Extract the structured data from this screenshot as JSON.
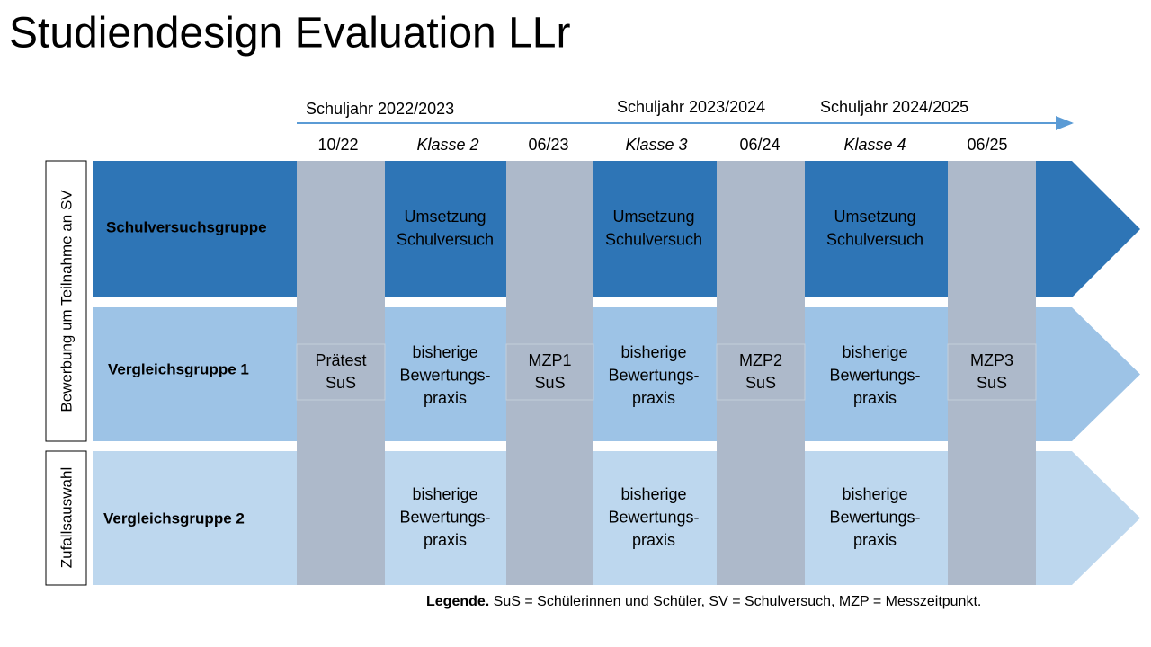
{
  "title": "Studiendesign Evaluation LLr",
  "timeline": {
    "school_years": [
      "Schuljahr  2022/2023",
      "Schuljahr  2023/2024",
      "Schuljahr  2024/2025"
    ],
    "columns": [
      "10/22",
      "Klasse 2",
      "06/23",
      "Klasse 3",
      "06/24",
      "Klasse 4",
      "06/25"
    ]
  },
  "side_labels": [
    "Bewerbung um Teilnahme an SV",
    "Zufallsauswahl"
  ],
  "rows": [
    {
      "label": "Schulversuchsgruppe",
      "cells": [
        [
          "Umsetzung",
          "Schulversuch"
        ],
        [
          "Umsetzung",
          "Schulversuch"
        ],
        [
          "Umsetzung",
          "Schulversuch"
        ]
      ]
    },
    {
      "label": "Vergleichsgruppe 1",
      "cells": [
        [
          "bisherige",
          "Bewertungs-",
          "praxis"
        ],
        [
          "bisherige",
          "Bewertungs-",
          "praxis"
        ],
        [
          "bisherige",
          "Bewertungs-",
          "praxis"
        ]
      ]
    },
    {
      "label": "Vergleichsgruppe 2",
      "cells": [
        [
          "bisherige",
          "Bewertungs-",
          "praxis"
        ],
        [
          "bisherige",
          "Bewertungs-",
          "praxis"
        ],
        [
          "bisherige",
          "Bewertungs-",
          "praxis"
        ]
      ]
    }
  ],
  "measurements": [
    [
      "Prätest",
      "SuS"
    ],
    [
      "MZP1",
      "SuS"
    ],
    [
      "MZP2",
      "SuS"
    ],
    [
      "MZP3",
      "SuS"
    ]
  ],
  "legend": {
    "term": "Legende.",
    "text": " SuS = Schülerinnen und Schüler, SV = Schulversuch, MZP = Messzeitpunkt."
  }
}
